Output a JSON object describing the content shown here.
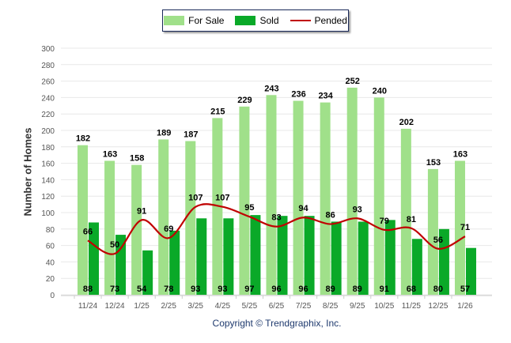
{
  "chart_data": {
    "type": "bar",
    "title": "",
    "xlabel": "",
    "ylabel": "Number of Homes",
    "ylim": [
      0,
      300
    ],
    "yticks": [
      0,
      20,
      40,
      60,
      80,
      100,
      120,
      140,
      160,
      180,
      200,
      220,
      240,
      260,
      280,
      300
    ],
    "grid": true,
    "legend_placement": "top-center",
    "categories": [
      "11/24",
      "12/24",
      "1/25",
      "2/25",
      "3/25",
      "4/25",
      "5/25",
      "6/25",
      "7/25",
      "8/25",
      "9/25",
      "10/25",
      "11/25",
      "12/25",
      "1/26"
    ],
    "series": [
      {
        "name": "For Sale",
        "type": "bar",
        "color": "#a0e08a",
        "values": [
          182,
          163,
          158,
          189,
          187,
          215,
          229,
          243,
          236,
          234,
          252,
          240,
          202,
          153,
          163
        ]
      },
      {
        "name": "Sold",
        "type": "bar",
        "color": "#0aa928",
        "values": [
          88,
          73,
          54,
          78,
          93,
          93,
          97,
          96,
          96,
          89,
          89,
          91,
          68,
          80,
          57
        ]
      },
      {
        "name": "Pended",
        "type": "line",
        "color": "#c00000",
        "values": [
          66,
          50,
          91,
          69,
          107,
          107,
          95,
          83,
          94,
          86,
          93,
          79,
          81,
          56,
          71
        ]
      }
    ]
  },
  "footer": {
    "copyright": "Copyright © Trendgraphix, Inc."
  }
}
